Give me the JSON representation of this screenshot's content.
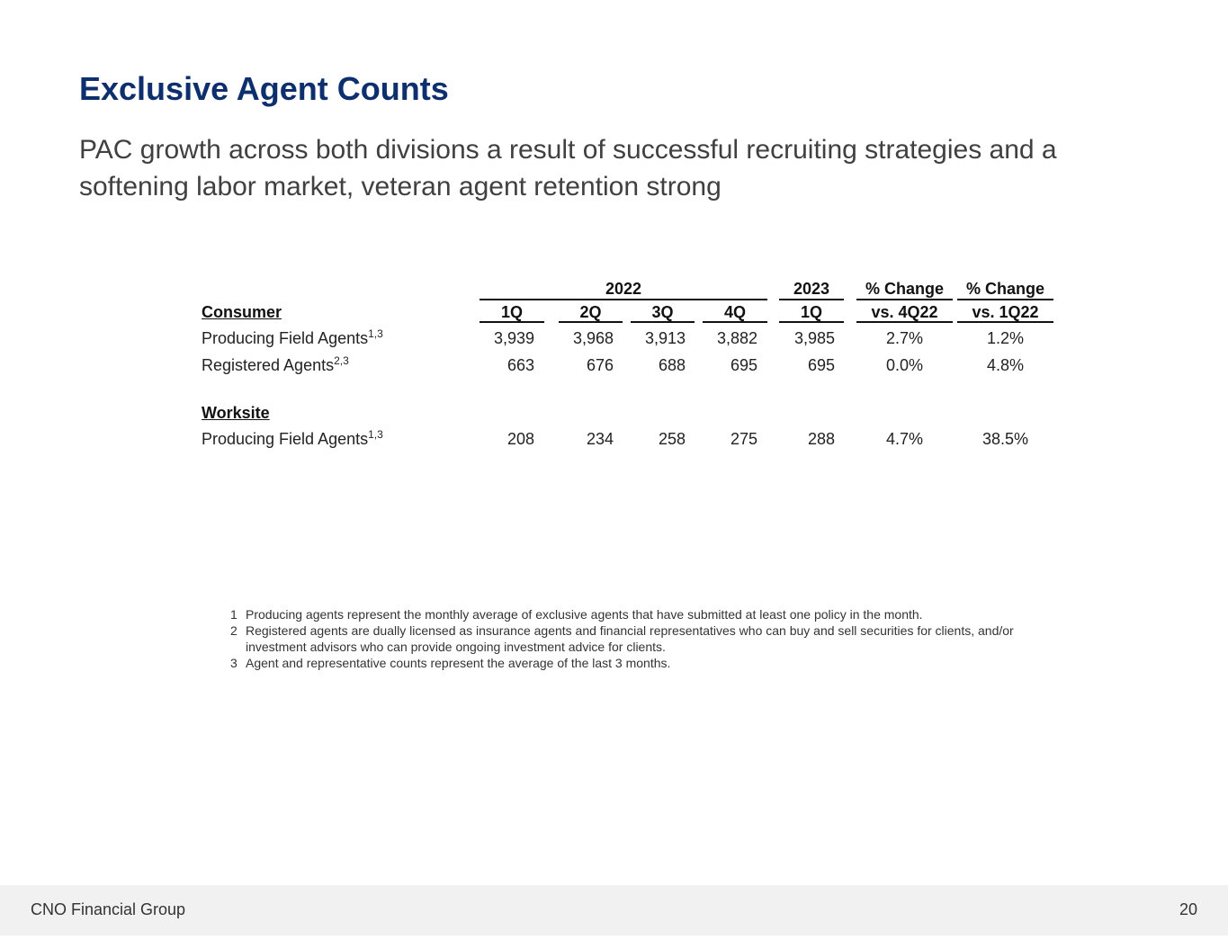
{
  "title": "Exclusive Agent Counts",
  "subtitle": "PAC growth across both divisions a result of successful recruiting strategies and a softening labor market, veteran agent retention strong",
  "table": {
    "group_headers": [
      "2022",
      "2023",
      "% Change",
      "% Change"
    ],
    "col_headers": [
      "1Q",
      "2Q",
      "3Q",
      "4Q",
      "1Q",
      "vs. 4Q22",
      "vs. 1Q22"
    ],
    "sections": [
      {
        "name": "Consumer",
        "rows": [
          {
            "label": "Producing Field Agents",
            "sup": "1,3",
            "values": [
              "3,939",
              "3,968",
              "3,913",
              "3,882",
              "3,985"
            ],
            "pct": [
              "2.7%",
              "1.2%"
            ]
          },
          {
            "label": "Registered Agents",
            "sup": "2,3",
            "values": [
              "663",
              "676",
              "688",
              "695",
              "695"
            ],
            "pct": [
              "0.0%",
              "4.8%"
            ]
          }
        ]
      },
      {
        "name": "Worksite",
        "rows": [
          {
            "label": "Producing Field Agents",
            "sup": "1,3",
            "values": [
              "208",
              "234",
              "258",
              "275",
              "288"
            ],
            "pct": [
              "4.7%",
              "38.5%"
            ]
          }
        ]
      }
    ]
  },
  "footnotes": [
    {
      "n": "1",
      "text": "Producing agents represent the monthly average of exclusive agents that have submitted at least one policy in the month."
    },
    {
      "n": "2",
      "text": "Registered agents are dually licensed as insurance agents and financial representatives who can buy and sell securities for clients, and/or investment advisors who can provide ongoing investment advice for clients."
    },
    {
      "n": "3",
      "text": "Agent and representative counts represent the average of the last 3 months."
    }
  ],
  "footer": {
    "company": "CNO Financial Group",
    "page": "20"
  }
}
